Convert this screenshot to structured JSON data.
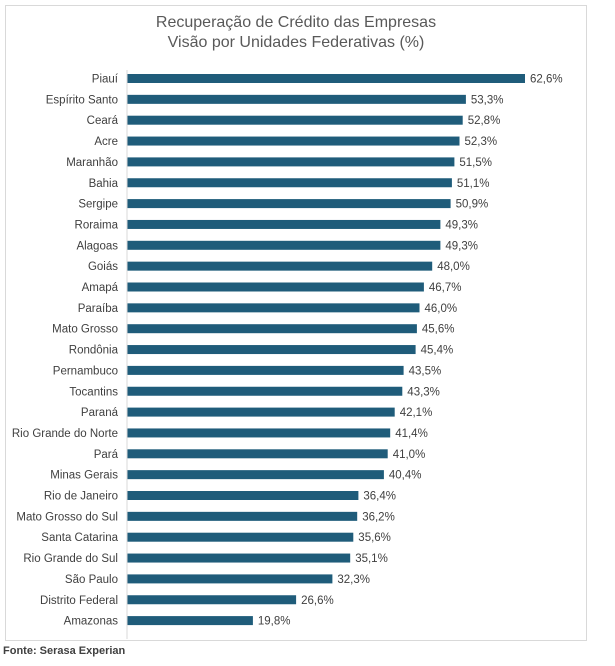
{
  "title_lines": [
    "Recuperação de Crédito das Empresas",
    "Visão por Unidades Federativas (%)"
  ],
  "source": "Fonte: Serasa Experian",
  "colors": {
    "bar": "#1f5c7a",
    "text": "#404040"
  },
  "chart_data": {
    "type": "bar",
    "orientation": "horizontal",
    "title": "Recuperação de Crédito das Empresas Visão por Unidades Federativas (%)",
    "categories": [
      "Piauí",
      "Espírito Santo",
      "Ceará",
      "Acre",
      "Maranhão",
      "Bahia",
      "Sergipe",
      "Roraima",
      "Alagoas",
      "Goiás",
      "Amapá",
      "Paraíba",
      "Mato Grosso",
      "Rondônia",
      "Pernambuco",
      "Tocantins",
      "Paraná",
      "Rio Grande do Norte",
      "Pará",
      "Minas Gerais",
      "Rio de Janeiro",
      "Mato Grosso do Sul",
      "Santa Catarina",
      "Rio Grande do Sul",
      "São Paulo",
      "Distrito Federal",
      "Amazonas"
    ],
    "values": [
      62.6,
      53.3,
      52.8,
      52.3,
      51.5,
      51.1,
      50.9,
      49.3,
      49.3,
      48.0,
      46.7,
      46.0,
      45.6,
      45.4,
      43.5,
      43.3,
      42.1,
      41.4,
      41.0,
      40.4,
      36.4,
      36.2,
      35.6,
      35.1,
      32.3,
      26.6,
      19.8
    ],
    "value_labels": [
      "62,6%",
      "53,3%",
      "52,8%",
      "52,3%",
      "51,5%",
      "51,1%",
      "50,9%",
      "49,3%",
      "49,3%",
      "48,0%",
      "46,7%",
      "46,0%",
      "45,6%",
      "45,4%",
      "43,5%",
      "43,3%",
      "42,1%",
      "41,4%",
      "41,0%",
      "40,4%",
      "36,4%",
      "36,2%",
      "35,6%",
      "35,1%",
      "32,3%",
      "26,6%",
      "19,8%"
    ],
    "xlim": [
      0,
      62.6
    ],
    "xlabel": "",
    "ylabel": "",
    "grid": false,
    "legend": "none"
  }
}
